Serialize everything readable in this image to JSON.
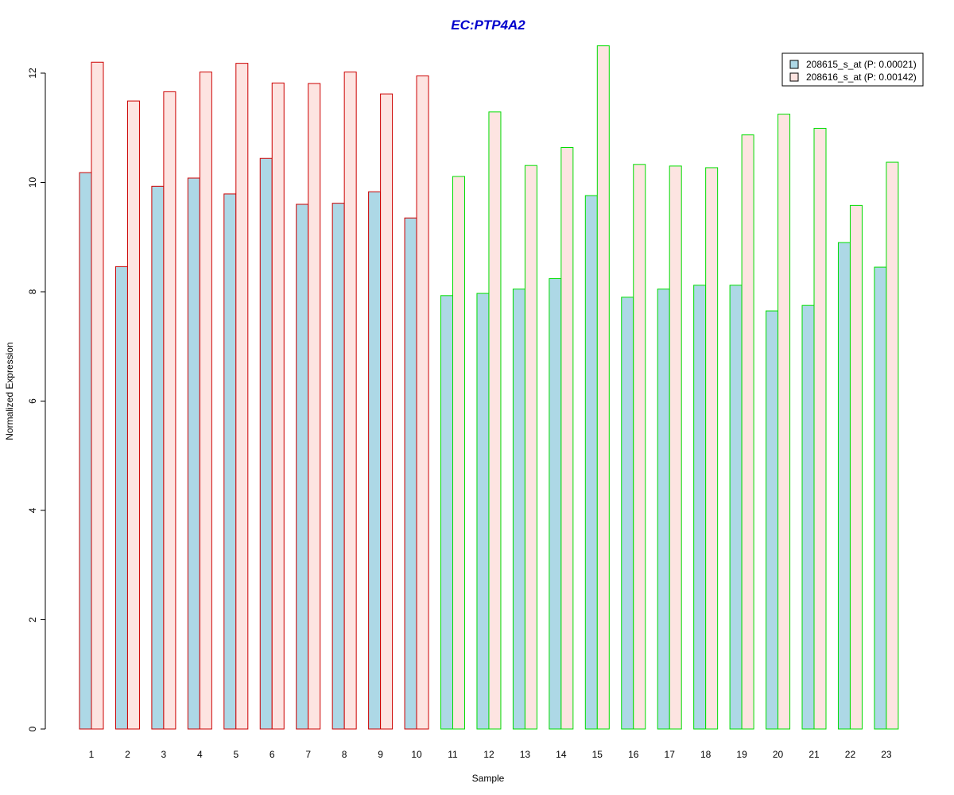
{
  "chart_data": {
    "type": "bar",
    "title": "EC:PTP4A2",
    "xlabel": "Sample",
    "ylabel": "Normalized Expression",
    "ylim": [
      0,
      12.5
    ],
    "yticks": [
      0,
      2,
      4,
      6,
      8,
      10,
      12
    ],
    "categories": [
      "1",
      "2",
      "3",
      "4",
      "5",
      "6",
      "7",
      "8",
      "9",
      "10",
      "11",
      "12",
      "13",
      "14",
      "15",
      "16",
      "17",
      "18",
      "19",
      "20",
      "21",
      "22",
      "23"
    ],
    "group_border_colors": [
      "#cc0000",
      "#cc0000",
      "#cc0000",
      "#cc0000",
      "#cc0000",
      "#cc0000",
      "#cc0000",
      "#cc0000",
      "#cc0000",
      "#cc0000",
      "#00dd00",
      "#00dd00",
      "#00dd00",
      "#00dd00",
      "#00dd00",
      "#00dd00",
      "#00dd00",
      "#00dd00",
      "#00dd00",
      "#00dd00",
      "#00dd00",
      "#00dd00",
      "#00dd00"
    ],
    "series": [
      {
        "name": "208615_s_at (P: 0.00021)",
        "fill": "#add8e6",
        "values": [
          10.18,
          8.46,
          9.93,
          10.08,
          9.79,
          10.44,
          9.6,
          9.62,
          9.83,
          9.35,
          7.93,
          7.97,
          8.05,
          8.24,
          9.76,
          7.9,
          8.05,
          8.12,
          8.12,
          7.65,
          7.75,
          8.9,
          8.45
        ]
      },
      {
        "name": "208616_s_at (P: 0.00142)",
        "fill": "#fde4e1",
        "values": [
          12.2,
          11.49,
          11.66,
          12.02,
          12.18,
          11.82,
          11.81,
          12.02,
          11.62,
          11.95,
          10.11,
          11.29,
          10.31,
          10.64,
          12.5,
          10.33,
          10.3,
          10.27,
          10.87,
          11.25,
          10.99,
          9.58,
          10.37
        ]
      }
    ],
    "legend_position": "top-right",
    "grid": false,
    "colors": {
      "title": "#0000cc",
      "axis": "#000000"
    }
  }
}
